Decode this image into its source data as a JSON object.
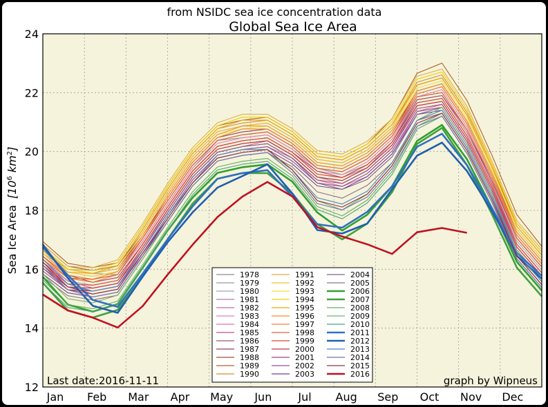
{
  "chart_data": {
    "type": "line",
    "subtitle": "from NSIDC sea ice concentration data",
    "title": "Global Sea Ice Area",
    "ylabel_main": "Sea Ice Area",
    "ylabel_unit": "[10",
    "ylabel_exp": "6",
    "ylabel_unit2": " km",
    "ylabel_exp2": "2",
    "ylabel_close": "]",
    "ylim": [
      12,
      24
    ],
    "yticks": [
      12,
      14,
      16,
      18,
      20,
      22,
      24
    ],
    "xlim": [
      0,
      365
    ],
    "month_labels": [
      "Jan",
      "Feb",
      "Mar",
      "Apr",
      "May",
      "Jun",
      "Jul",
      "Aug",
      "Sep",
      "Oct",
      "Nov",
      "Dec"
    ],
    "grid": true,
    "background": "#f5f3dc",
    "legend_placement": "bottom-center",
    "left_annotation": "Last date:2016-11-11",
    "right_annotation": "graph by Wipneus",
    "series": [
      {
        "name": "1978",
        "color": "#8a8a8a",
        "bold": false,
        "values": []
      },
      {
        "name": "1979",
        "color": "#999999",
        "bold": false,
        "values": [
          16.6,
          16.0,
          15.8,
          15.9,
          16.9,
          18.2,
          19.5,
          20.3,
          20.5,
          20.6,
          20.0,
          19.5,
          19.2,
          19.5,
          20.4,
          21.8,
          22.0,
          20.8,
          18.9,
          17.2,
          16.2
        ]
      },
      {
        "name": "1980",
        "color": "#a0a0c0",
        "bold": false,
        "values": [
          16.3,
          15.6,
          15.4,
          15.7,
          16.6,
          18.0,
          19.3,
          20.0,
          20.3,
          20.4,
          19.8,
          19.2,
          19.0,
          19.4,
          20.3,
          21.6,
          21.8,
          20.6,
          18.8,
          17.0,
          16.0
        ]
      },
      {
        "name": "1981",
        "color": "#b07ab0",
        "bold": false,
        "values": [
          16.5,
          15.7,
          15.5,
          15.8,
          16.8,
          18.1,
          19.4,
          20.1,
          20.4,
          20.5,
          19.9,
          19.3,
          19.1,
          19.4,
          20.4,
          21.7,
          21.9,
          20.7,
          18.9,
          17.1,
          16.1
        ]
      },
      {
        "name": "1982",
        "color": "#c06aa8",
        "bold": false,
        "values": [
          16.4,
          15.6,
          15.3,
          15.6,
          16.6,
          17.9,
          19.2,
          19.9,
          20.2,
          20.4,
          19.8,
          19.2,
          18.9,
          19.3,
          20.2,
          21.5,
          21.7,
          20.5,
          18.7,
          16.9,
          15.9
        ]
      },
      {
        "name": "1983",
        "color": "#e080c0",
        "bold": false,
        "values": [
          16.6,
          15.8,
          15.6,
          15.9,
          16.9,
          18.2,
          19.5,
          20.2,
          20.5,
          20.6,
          20.0,
          19.4,
          19.2,
          19.6,
          20.5,
          21.8,
          22.1,
          20.9,
          19.0,
          17.2,
          16.2
        ]
      },
      {
        "name": "1984",
        "color": "#e070b0",
        "bold": false,
        "values": [
          16.2,
          15.5,
          15.2,
          15.5,
          16.4,
          17.8,
          19.1,
          19.8,
          20.1,
          20.2,
          19.7,
          19.1,
          18.8,
          19.1,
          20.0,
          21.3,
          21.6,
          20.4,
          18.6,
          16.8,
          15.8
        ]
      },
      {
        "name": "1985",
        "color": "#c05080",
        "bold": false,
        "values": [
          16.7,
          15.9,
          15.7,
          16.0,
          17.0,
          18.3,
          19.6,
          20.3,
          20.6,
          20.7,
          20.1,
          19.5,
          19.3,
          19.7,
          20.6,
          21.9,
          22.2,
          21.0,
          19.1,
          17.3,
          16.3
        ]
      },
      {
        "name": "1986",
        "color": "#a05070",
        "bold": false,
        "values": [
          16.5,
          15.8,
          15.5,
          15.8,
          16.8,
          18.1,
          19.4,
          20.1,
          20.4,
          20.5,
          19.9,
          19.4,
          19.1,
          19.5,
          20.4,
          21.7,
          21.9,
          20.8,
          18.9,
          17.1,
          16.1
        ]
      },
      {
        "name": "1987",
        "color": "#904050",
        "bold": false,
        "values": [
          16.8,
          16.0,
          15.8,
          16.1,
          17.1,
          18.4,
          19.7,
          20.4,
          20.7,
          20.8,
          20.2,
          19.6,
          19.4,
          19.8,
          20.7,
          22.0,
          22.3,
          21.1,
          19.2,
          17.4,
          16.4
        ]
      },
      {
        "name": "1988",
        "color": "#a05030",
        "bold": false,
        "values": [
          16.9,
          16.1,
          15.9,
          16.2,
          17.2,
          18.6,
          19.9,
          20.6,
          20.9,
          21.0,
          20.4,
          19.8,
          19.6,
          20.0,
          20.9,
          22.2,
          22.5,
          21.3,
          19.4,
          17.6,
          16.6
        ]
      },
      {
        "name": "1989",
        "color": "#b06020",
        "bold": false,
        "values": [
          17.0,
          16.2,
          16.0,
          16.3,
          17.4,
          18.8,
          20.1,
          20.8,
          21.1,
          21.2,
          20.6,
          20.0,
          19.8,
          20.2,
          21.2,
          22.6,
          23.0,
          21.8,
          19.8,
          17.9,
          16.8
        ]
      },
      {
        "name": "1990",
        "color": "#d09030",
        "bold": false,
        "values": [
          16.8,
          16.0,
          15.9,
          16.2,
          17.3,
          18.7,
          20.0,
          20.7,
          21.0,
          21.1,
          20.5,
          19.9,
          19.7,
          20.1,
          21.0,
          22.3,
          22.6,
          21.4,
          19.5,
          17.6,
          16.6
        ]
      },
      {
        "name": "1991",
        "color": "#e0b040",
        "bold": false,
        "values": [
          16.9,
          16.1,
          16.0,
          16.4,
          17.5,
          18.9,
          20.2,
          20.9,
          21.3,
          21.3,
          20.7,
          20.1,
          19.9,
          20.3,
          21.2,
          22.5,
          22.8,
          21.6,
          19.6,
          17.7,
          16.7
        ]
      },
      {
        "name": "1992",
        "color": "#e8c830",
        "bold": false,
        "values": [
          16.7,
          16.0,
          15.8,
          16.1,
          17.2,
          18.6,
          19.9,
          20.6,
          20.9,
          21.0,
          20.4,
          19.8,
          19.6,
          20.0,
          20.9,
          22.2,
          22.5,
          21.3,
          19.4,
          17.5,
          16.5
        ]
      },
      {
        "name": "1993",
        "color": "#f0e040",
        "bold": false,
        "values": [
          16.6,
          15.9,
          15.7,
          16.0,
          17.1,
          18.5,
          19.8,
          20.5,
          20.8,
          20.9,
          20.3,
          19.7,
          19.5,
          19.9,
          20.8,
          22.1,
          22.4,
          21.2,
          19.3,
          17.4,
          16.4
        ]
      },
      {
        "name": "1994",
        "color": "#f0d000",
        "bold": false,
        "values": [
          16.8,
          16.0,
          15.9,
          16.3,
          17.4,
          18.8,
          20.1,
          20.8,
          21.2,
          21.2,
          20.6,
          20.0,
          19.8,
          20.2,
          21.1,
          22.4,
          22.7,
          21.5,
          19.5,
          17.6,
          16.6
        ]
      },
      {
        "name": "1995",
        "color": "#f0a000",
        "bold": false,
        "values": [
          16.7,
          15.9,
          15.8,
          16.2,
          17.3,
          18.7,
          20.0,
          20.7,
          21.1,
          21.1,
          20.5,
          19.9,
          19.7,
          20.1,
          21.0,
          22.2,
          22.5,
          21.3,
          19.4,
          17.5,
          16.5
        ]
      },
      {
        "name": "1996",
        "color": "#f09020",
        "bold": false,
        "values": [
          16.5,
          15.8,
          15.6,
          16.0,
          17.1,
          18.5,
          19.8,
          20.5,
          20.9,
          20.9,
          20.3,
          19.7,
          19.5,
          19.9,
          20.8,
          22.0,
          22.3,
          21.1,
          19.2,
          17.3,
          16.3
        ]
      },
      {
        "name": "1997",
        "color": "#f08030",
        "bold": false,
        "values": [
          16.4,
          15.7,
          15.5,
          15.9,
          17.0,
          18.4,
          19.7,
          20.4,
          20.8,
          20.8,
          20.2,
          19.6,
          19.4,
          19.8,
          20.7,
          21.9,
          22.2,
          21.0,
          19.1,
          17.2,
          16.2
        ]
      },
      {
        "name": "1998",
        "color": "#e06030",
        "bold": false,
        "values": [
          16.5,
          15.7,
          15.6,
          15.9,
          17.0,
          18.3,
          19.6,
          20.3,
          20.6,
          20.7,
          20.1,
          19.5,
          19.3,
          19.7,
          20.6,
          21.8,
          22.0,
          20.8,
          19.0,
          17.1,
          16.1
        ]
      },
      {
        "name": "1999",
        "color": "#e04030",
        "bold": false,
        "values": [
          16.3,
          15.5,
          15.4,
          15.7,
          16.8,
          18.1,
          19.4,
          20.1,
          20.4,
          20.5,
          19.9,
          19.3,
          19.1,
          19.5,
          20.4,
          21.6,
          21.8,
          20.6,
          18.8,
          16.9,
          15.9
        ]
      },
      {
        "name": "2000",
        "color": "#c03040",
        "bold": false,
        "values": [
          16.2,
          15.4,
          15.3,
          15.6,
          16.7,
          18.0,
          19.3,
          20.0,
          20.3,
          20.4,
          19.8,
          19.2,
          19.0,
          19.4,
          20.3,
          21.5,
          21.7,
          20.5,
          18.7,
          16.8,
          15.8
        ]
      },
      {
        "name": "2001",
        "color": "#a04080",
        "bold": false,
        "values": [
          16.1,
          15.3,
          15.2,
          15.5,
          16.6,
          17.9,
          19.2,
          19.9,
          20.2,
          20.3,
          19.7,
          19.1,
          18.9,
          19.3,
          20.2,
          21.4,
          21.6,
          20.4,
          18.6,
          16.7,
          15.7
        ]
      },
      {
        "name": "2002",
        "color": "#9050a0",
        "bold": false,
        "values": [
          16.0,
          15.3,
          15.1,
          15.4,
          16.5,
          17.8,
          19.1,
          19.8,
          20.1,
          20.2,
          19.6,
          19.0,
          18.8,
          19.2,
          20.1,
          21.3,
          21.5,
          20.3,
          18.5,
          16.6,
          15.6
        ]
      },
      {
        "name": "2003",
        "color": "#7040a0",
        "bold": false,
        "values": [
          15.9,
          15.2,
          15.0,
          15.3,
          16.4,
          17.7,
          19.0,
          19.7,
          20.0,
          20.1,
          19.5,
          18.9,
          18.7,
          19.1,
          20.0,
          21.2,
          21.4,
          20.2,
          18.4,
          16.5,
          15.5
        ]
      },
      {
        "name": "2004",
        "color": "#806090",
        "bold": false,
        "values": [
          16.1,
          15.4,
          15.2,
          15.5,
          16.6,
          17.9,
          19.2,
          19.9,
          20.2,
          20.3,
          19.7,
          19.0,
          18.7,
          19.0,
          19.9,
          21.2,
          21.5,
          20.3,
          18.5,
          16.6,
          15.6
        ]
      },
      {
        "name": "2005",
        "color": "#907080",
        "bold": false,
        "values": [
          15.8,
          15.1,
          14.9,
          15.2,
          16.3,
          17.6,
          18.9,
          19.6,
          19.9,
          20.0,
          19.4,
          18.7,
          18.4,
          18.8,
          19.7,
          21.0,
          21.3,
          20.1,
          18.3,
          16.4,
          15.4
        ]
      },
      {
        "name": "2006",
        "color": "#30a030",
        "bold": true,
        "values": [
          15.8,
          14.8,
          14.5,
          14.9,
          16.0,
          17.3,
          18.5,
          19.2,
          19.5,
          19.6,
          18.9,
          18.0,
          17.3,
          17.8,
          18.9,
          20.3,
          20.9,
          19.8,
          18.0,
          16.3,
          15.3
        ]
      },
      {
        "name": "2007",
        "color": "#40a040",
        "bold": true,
        "values": [
          15.6,
          14.6,
          14.3,
          14.7,
          15.7,
          17.0,
          18.3,
          19.0,
          19.3,
          19.3,
          18.5,
          17.6,
          17.0,
          17.5,
          18.7,
          20.2,
          20.8,
          19.6,
          17.8,
          16.1,
          15.1
        ]
      },
      {
        "name": "2008",
        "color": "#60b060",
        "bold": false,
        "values": [
          15.7,
          14.8,
          14.6,
          15.0,
          16.1,
          17.4,
          18.7,
          19.4,
          19.7,
          19.8,
          19.1,
          18.2,
          17.8,
          18.3,
          19.4,
          20.8,
          21.3,
          20.1,
          18.3,
          16.5,
          15.5
        ]
      },
      {
        "name": "2009",
        "color": "#70b070",
        "bold": false,
        "values": [
          15.9,
          15.0,
          14.8,
          15.2,
          16.3,
          17.6,
          18.9,
          19.6,
          19.9,
          20.0,
          19.3,
          18.4,
          18.0,
          18.5,
          19.6,
          21.0,
          21.5,
          20.3,
          18.5,
          16.7,
          15.7
        ]
      },
      {
        "name": "2010",
        "color": "#50a080",
        "bold": false,
        "values": [
          15.6,
          14.7,
          14.5,
          14.9,
          16.0,
          17.3,
          18.6,
          19.3,
          19.6,
          19.7,
          19.0,
          18.1,
          17.7,
          18.2,
          19.3,
          20.7,
          21.2,
          20.0,
          18.2,
          16.4,
          15.4
        ]
      },
      {
        "name": "2011",
        "color": "#3070c0",
        "bold": true,
        "values": [
          16.8,
          15.8,
          14.9,
          14.8,
          15.8,
          17.0,
          18.2,
          19.0,
          19.3,
          19.4,
          18.4,
          17.6,
          17.4,
          17.9,
          18.9,
          20.1,
          20.6,
          19.6,
          18.0,
          16.6,
          15.8
        ]
      },
      {
        "name": "2012",
        "color": "#1f5fb0",
        "bold": true,
        "values": [
          16.9,
          15.7,
          14.7,
          14.6,
          15.7,
          16.9,
          18.0,
          18.7,
          19.2,
          19.6,
          18.5,
          17.4,
          17.2,
          17.5,
          18.8,
          19.8,
          20.3,
          19.4,
          17.9,
          16.5,
          15.7
        ]
      },
      {
        "name": "2013",
        "color": "#5080c0",
        "bold": false,
        "values": [
          16.4,
          15.5,
          15.2,
          15.5,
          16.5,
          17.8,
          19.0,
          19.8,
          20.1,
          20.1,
          19.3,
          18.5,
          18.2,
          18.6,
          19.7,
          21.0,
          21.4,
          20.2,
          18.4,
          16.6,
          15.6
        ]
      },
      {
        "name": "2014",
        "color": "#7070b0",
        "bold": false,
        "values": [
          16.2,
          15.3,
          15.0,
          15.3,
          16.4,
          17.6,
          18.9,
          19.6,
          19.9,
          20.0,
          19.2,
          18.3,
          18.0,
          18.4,
          19.5,
          20.8,
          21.2,
          20.0,
          18.2,
          16.4,
          15.4
        ]
      },
      {
        "name": "2015",
        "color": "#903040",
        "bold": false,
        "values": [
          16.3,
          15.4,
          15.1,
          15.4,
          16.5,
          17.7,
          19.0,
          19.7,
          20.0,
          20.1,
          19.3,
          18.4,
          18.1,
          18.5,
          19.6,
          20.9,
          21.3,
          20.1,
          18.3,
          16.5,
          15.5
        ]
      },
      {
        "name": "2016",
        "color": "#c01020",
        "bold": true,
        "values": [
          15.2,
          14.6,
          14.3,
          14.1,
          14.7,
          15.8,
          16.9,
          17.7,
          18.5,
          19.0,
          18.4,
          17.5,
          17.1,
          16.8,
          16.6,
          17.2,
          17.4,
          17.3
        ]
      }
    ]
  }
}
